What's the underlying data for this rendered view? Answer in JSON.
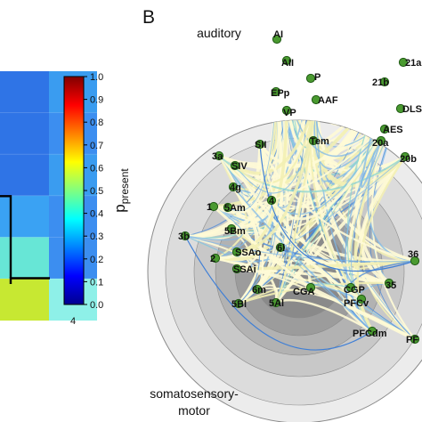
{
  "panel_letter": "B",
  "left_panel": {
    "x_tick": "4",
    "matrix": [
      [
        "#2f74e6",
        "#3a9cf0"
      ],
      [
        "#2f74e6",
        "#3c8ef0"
      ],
      [
        "#2f74e6",
        "#3a9cf0"
      ],
      [
        "#3aa2f3",
        "#3c8ef0"
      ],
      [
        "#67e6d6",
        "#3c8ef0"
      ],
      [
        "#c7e832",
        "#8ef0e8"
      ]
    ]
  },
  "colorbar": {
    "label_main": "p",
    "label_sub": "present",
    "ticks": [
      "1.0",
      "0.9",
      "0.8",
      "0.7",
      "0.6",
      "0.5",
      "0.4",
      "0.3",
      "0.2",
      "0.1",
      "0.0"
    ],
    "colors": [
      "#00008f",
      "#0000ff",
      "#0080ff",
      "#00ffff",
      "#80ff80",
      "#ffff00",
      "#ff8000",
      "#ff0000",
      "#800000"
    ]
  },
  "diagram": {
    "region_labels": {
      "auditory": "auditory",
      "somato_line1": "somatosensory-",
      "somato_line2": "motor"
    },
    "ring_colors": [
      "#ececec",
      "#dcdcdc",
      "#c8c8c8",
      "#b2b2b2",
      "#9c9c9c",
      "#8a8a8a"
    ],
    "edge_colors": [
      "#fffbd6",
      "#f3efb4",
      "#7fb8e8",
      "#4a88d8",
      "#8bd4d2",
      "#6b2a55"
    ],
    "node_color": "#4a9a30",
    "node_dark_color": "#1f5a14",
    "nodes": [
      {
        "id": "AI",
        "label": "AI"
      },
      {
        "id": "AII",
        "label": "AII"
      },
      {
        "id": "P",
        "label": "P"
      },
      {
        "id": "EPp",
        "label": "EPp"
      },
      {
        "id": "AAF",
        "label": "AAF"
      },
      {
        "id": "VP",
        "label": "VP"
      },
      {
        "id": "Tem",
        "label": "Tem"
      },
      {
        "id": "21a",
        "label": "21a"
      },
      {
        "id": "21b",
        "label": "21b"
      },
      {
        "id": "DLS",
        "label": "DLS"
      },
      {
        "id": "AES",
        "label": "AES"
      },
      {
        "id": "20a",
        "label": "20a"
      },
      {
        "id": "20b",
        "label": "20b"
      },
      {
        "id": "SII",
        "label": "SII"
      },
      {
        "id": "3a",
        "label": "3a"
      },
      {
        "id": "SIV",
        "label": "SIV"
      },
      {
        "id": "4g",
        "label": "4g"
      },
      {
        "id": "4",
        "label": "4"
      },
      {
        "id": "1",
        "label": "1"
      },
      {
        "id": "5Am",
        "label": "5Am"
      },
      {
        "id": "5Bm",
        "label": "5Bm"
      },
      {
        "id": "3b",
        "label": "3b"
      },
      {
        "id": "6l",
        "label": "6l"
      },
      {
        "id": "2",
        "label": "2"
      },
      {
        "id": "SSAo",
        "label": "SSAo"
      },
      {
        "id": "SSAi",
        "label": "SSAi"
      },
      {
        "id": "6m",
        "label": "6m"
      },
      {
        "id": "5Bl",
        "label": "5Bl"
      },
      {
        "id": "5Al",
        "label": "5Al"
      },
      {
        "id": "CGA",
        "label": "CGA"
      },
      {
        "id": "CGP",
        "label": "CGP"
      },
      {
        "id": "PFCv",
        "label": "PFCv"
      },
      {
        "id": "35",
        "label": "35"
      },
      {
        "id": "36",
        "label": "36"
      },
      {
        "id": "PFCdm",
        "label": "PFCdm"
      },
      {
        "id": "PF",
        "label": "PF"
      }
    ]
  }
}
